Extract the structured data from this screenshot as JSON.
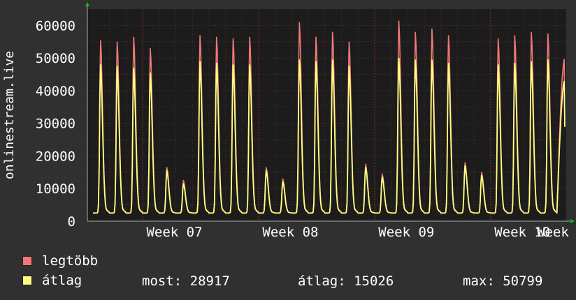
{
  "colors": {
    "background": "#303030",
    "plot_background": "#1c1c1c",
    "grid": "#5a2a2a",
    "axis": "#aaaaaa",
    "arrow": "#00cc00",
    "max_series": "#f07878",
    "avg_series": "#ffff80"
  },
  "legend": {
    "max_label": "legtöbb",
    "avg_label": "átlag",
    "stats": {
      "current": "most: 28917",
      "average": "átlag: 15026",
      "maximum": "max: 50799"
    }
  },
  "chart_data": {
    "type": "area",
    "ylabel": "onlinestream.live",
    "xlabel": "",
    "title": "",
    "ylim": [
      0,
      65000
    ],
    "y_ticks": [
      0,
      10000,
      20000,
      30000,
      40000,
      50000,
      60000
    ],
    "x_ticks": [
      "Week 07",
      "Week 08",
      "Week 09",
      "Week 10",
      "Week"
    ],
    "grid": true,
    "legend_position": "bottom-left",
    "series": [
      {
        "name": "legtöbb",
        "description": "daily peak values (one per day)",
        "values": [
          55500,
          55000,
          56500,
          53000,
          16500,
          12500,
          57000,
          56500,
          56000,
          56500,
          16500,
          13000,
          61000,
          56500,
          58000,
          55000,
          17500,
          14500,
          61500,
          58000,
          59000,
          57000,
          18000,
          15000,
          56000,
          57000,
          58000,
          57500
        ]
      },
      {
        "name": "átlag",
        "description": "daily peak values (one per day)",
        "values": [
          48000,
          47500,
          47000,
          45500,
          15500,
          11500,
          49000,
          48500,
          48000,
          48000,
          15500,
          12000,
          49500,
          49000,
          49500,
          47500,
          16500,
          13500,
          50000,
          49500,
          49500,
          48500,
          17000,
          14000,
          48000,
          48500,
          49000,
          49500
        ]
      }
    ],
    "minimum_baseline": 2500,
    "last_value": 28917
  }
}
